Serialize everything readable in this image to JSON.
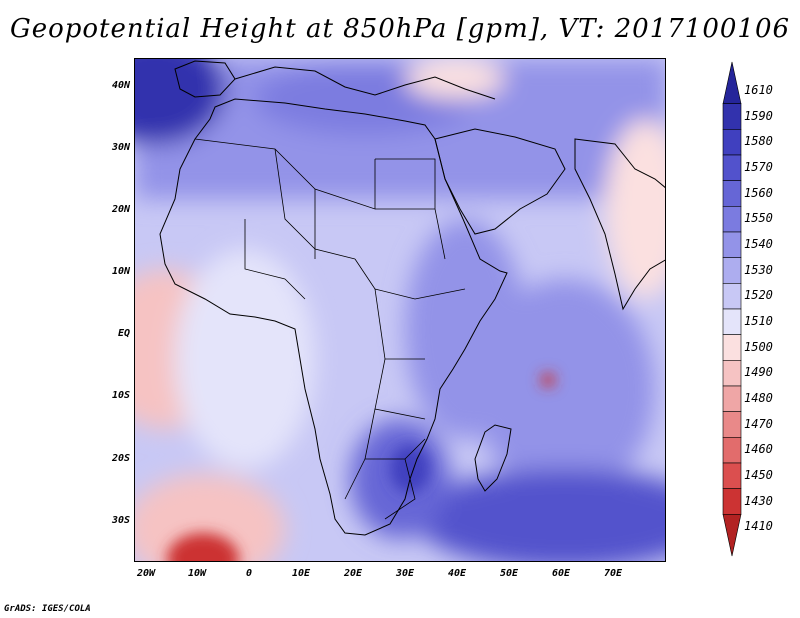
{
  "title": "Geopotential Height at 850hPa [gpm], VT: 2017100106",
  "credit": "GrADS: IGES/COLA",
  "lat_labels": [
    "40N",
    "30N",
    "20N",
    "10N",
    "EQ",
    "10S",
    "20S",
    "30S"
  ],
  "lon_labels": [
    "20W",
    "10W",
    "0",
    "10E",
    "20E",
    "30E",
    "40E",
    "50E",
    "60E",
    "70E"
  ],
  "colorbar": {
    "levels": [
      "1610",
      "1590",
      "1580",
      "1570",
      "1560",
      "1550",
      "1540",
      "1530",
      "1520",
      "1510",
      "1500",
      "1490",
      "1480",
      "1470",
      "1460",
      "1450",
      "1430",
      "1410"
    ],
    "colors": [
      "#25259a",
      "#3232ad",
      "#4040bf",
      "#5252cc",
      "#6666d6",
      "#7b7be0",
      "#9393e8",
      "#adadef",
      "#c8c8f5",
      "#e4e4fa",
      "#fbe0e0",
      "#f6c3c3",
      "#efa6a6",
      "#e98989",
      "#e26c6c",
      "#db4f4f",
      "#cc3333",
      "#b22222"
    ]
  }
}
